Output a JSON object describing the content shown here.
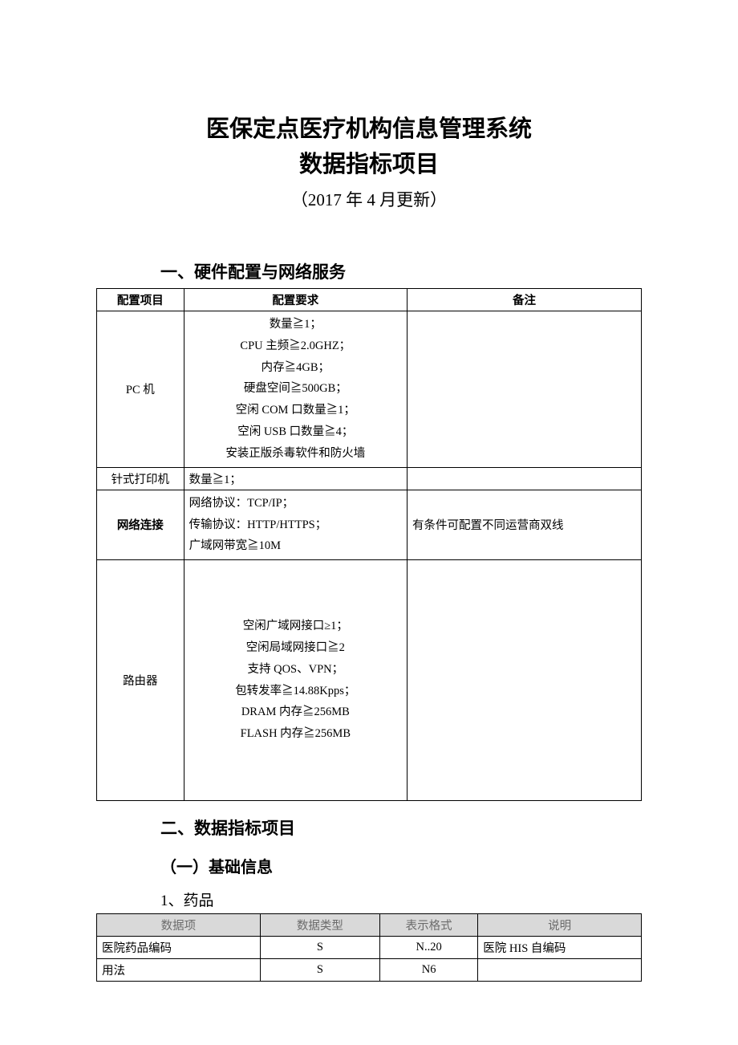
{
  "colors": {
    "page_bg": "#ffffff",
    "text": "#000000",
    "table_border": "#000000",
    "t2_header_bg": "#d9d9d9",
    "t2_header_text": "#6b6b6b"
  },
  "typography": {
    "title_fontsize": 29,
    "subtitle_fontsize": 21,
    "section_fontsize": 21,
    "subsection_fontsize": 20,
    "subsub_fontsize": 19,
    "table_fontsize": 14.5,
    "font_family": "SimSun"
  },
  "title_line1": "医保定点医疗机构信息管理系统",
  "title_line2": "数据指标项目",
  "subtitle": "（2017 年 4 月更新）",
  "section1": {
    "heading": "一、硬件配置与网络服务",
    "columns": [
      "配置项目",
      "配置要求",
      "备注"
    ],
    "col_widths_pct": [
      16,
      41,
      43
    ],
    "rows": [
      {
        "item": "PC 机",
        "req_lines": [
          "数量≧1；",
          "CPU 主频≧2.0GHZ；",
          "内存≧4GB；",
          "硬盘空间≧500GB；",
          "空闲 COM 口数量≧1；",
          "空闲 USB 口数量≧4；",
          "安装正版杀毒软件和防火墙"
        ],
        "req_align": "center",
        "note": "",
        "bold_item": false
      },
      {
        "item": "针式打印机",
        "req_lines": [
          "数量≧1；"
        ],
        "req_align": "left",
        "note": "",
        "bold_item": false
      },
      {
        "item": "网络连接",
        "req_lines": [
          "网络协议：TCP/IP；",
          "传输协议：HTTP/HTTPS；",
          "广域网带宽≧10M"
        ],
        "req_align": "left",
        "note": "有条件可配置不同运营商双线",
        "bold_item": true
      },
      {
        "item": "路由器",
        "req_lines": [
          "空闲广域网接口≥1；",
          "空闲局域网接口≧2",
          "支持 QOS、VPN；",
          "包转发率≧14.88Kpps；",
          "DRAM 内存≧256MB",
          "FLASH 内存≧256MB"
        ],
        "req_align": "center",
        "note": "",
        "bold_item": false,
        "tall": true
      }
    ]
  },
  "section2": {
    "heading": "二、数据指标项目",
    "sub_heading": "（一）基础信息",
    "subsub_heading": "1、药品",
    "columns": [
      "数据项",
      "数据类型",
      "表示格式",
      "说明"
    ],
    "col_widths_pct": [
      30,
      22,
      18,
      30
    ],
    "rows": [
      {
        "c0": "医院药品编码",
        "c1": "S",
        "c2": "N..20",
        "c3": "医院 HIS 自编码"
      },
      {
        "c0": "用法",
        "c1": "S",
        "c2": "N6",
        "c3": ""
      }
    ]
  }
}
